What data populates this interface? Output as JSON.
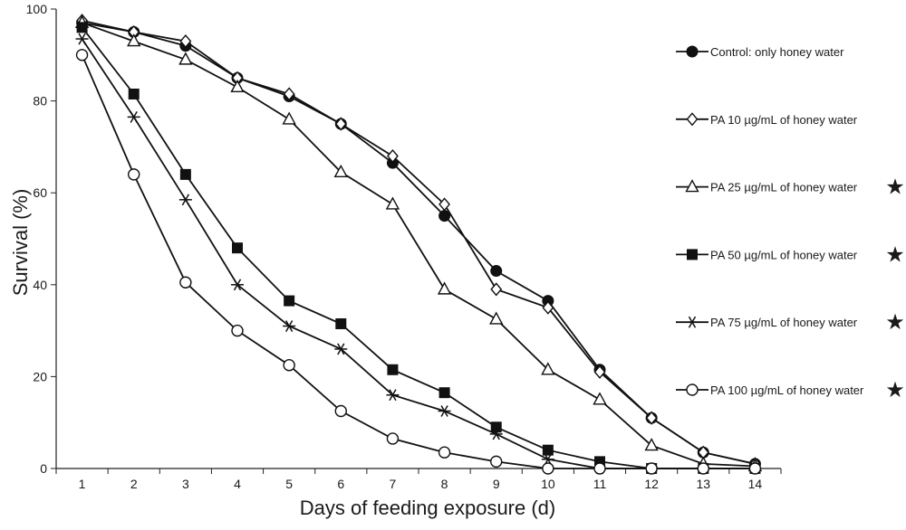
{
  "chart_data": {
    "type": "line",
    "xlabel": "Days of feeding exposure (d)",
    "ylabel": "Survival (%)",
    "ylim": [
      0,
      100
    ],
    "yticks": [
      0,
      20,
      40,
      60,
      80,
      100
    ],
    "x": [
      1,
      2,
      3,
      4,
      5,
      6,
      7,
      8,
      9,
      10,
      11,
      12,
      13,
      14
    ],
    "xtick_labels": [
      "1",
      "2",
      "3",
      "4",
      "5",
      "6",
      "7",
      "8",
      "9",
      "10",
      "11",
      "12",
      "13",
      "14"
    ],
    "grid": false,
    "legend_position": "right",
    "series": [
      {
        "name": "Control: only honey water",
        "marker": "filled-circle",
        "significant": false,
        "values": [
          97,
          95,
          92,
          85,
          81,
          75,
          66.5,
          55,
          43,
          36.5,
          21.5,
          11,
          3.5,
          1
        ]
      },
      {
        "name": "PA 10 µg/mL of honey water",
        "marker": "open-diamond",
        "significant": false,
        "values": [
          97.5,
          95,
          93,
          85,
          81.5,
          75,
          68,
          57.5,
          39,
          35,
          21,
          11,
          3.5,
          1
        ]
      },
      {
        "name": "PA 25 µg/mL of honey water",
        "marker": "open-triangle",
        "significant": true,
        "values": [
          97,
          93,
          89,
          83,
          76,
          64.5,
          57.5,
          39,
          32.5,
          21.5,
          15,
          5,
          1,
          0.5
        ]
      },
      {
        "name": "PA 50 µg/mL of honey water",
        "marker": "filled-square",
        "significant": true,
        "values": [
          96,
          81.5,
          64,
          48,
          36.5,
          31.5,
          21.5,
          16.5,
          9,
          4,
          1.5,
          0,
          0,
          0
        ]
      },
      {
        "name": "PA 75 µg/mL of honey water",
        "marker": "asterisk",
        "significant": true,
        "values": [
          93.5,
          76.5,
          58.5,
          40,
          31,
          26,
          16,
          12.5,
          7.5,
          2,
          0,
          0,
          0,
          0
        ]
      },
      {
        "name": "PA 100 µg/mL of honey water",
        "marker": "open-circle",
        "significant": true,
        "values": [
          90,
          64,
          40.5,
          30,
          22.5,
          12.5,
          6.5,
          3.5,
          1.5,
          0,
          0,
          0,
          0,
          0
        ]
      }
    ],
    "significance_symbol": "★"
  }
}
